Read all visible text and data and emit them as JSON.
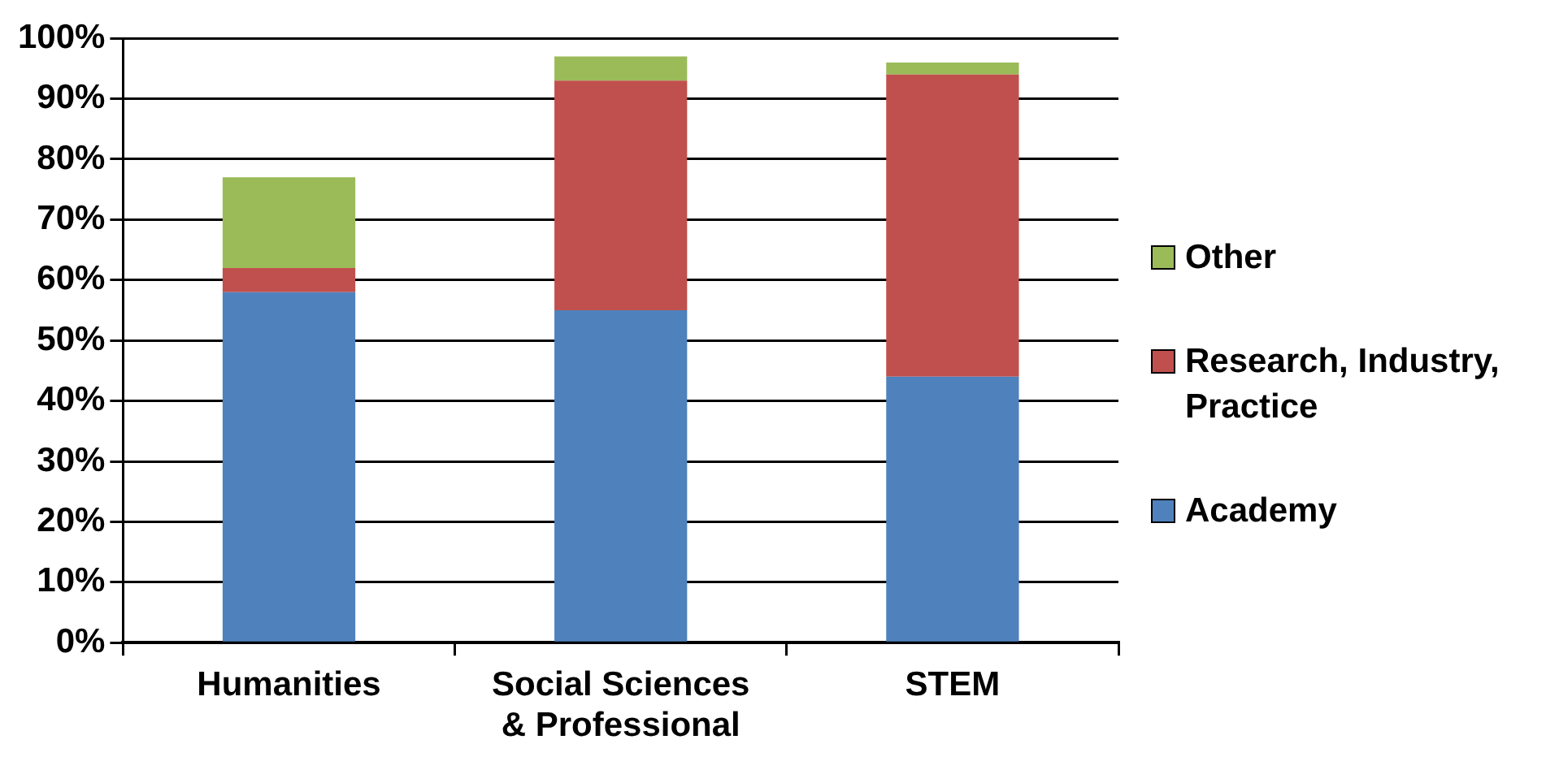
{
  "chart_data": {
    "type": "bar",
    "stacked": true,
    "categories": [
      "Humanities",
      "Social Sciences & Professional",
      "STEM"
    ],
    "series": [
      {
        "name": "Academy",
        "color": "#4f81bd",
        "values": [
          58,
          55,
          44
        ]
      },
      {
        "name": "Research, Industry, Practice",
        "color": "#c0504d",
        "values": [
          4,
          38,
          50
        ]
      },
      {
        "name": "Other",
        "color": "#9bbb59",
        "values": [
          15,
          4,
          2
        ]
      }
    ],
    "ylim": [
      0,
      100
    ],
    "yticks": [
      {
        "value": 0,
        "label": "0%"
      },
      {
        "value": 10,
        "label": "10%"
      },
      {
        "value": 20,
        "label": "20%"
      },
      {
        "value": 30,
        "label": "30%"
      },
      {
        "value": 40,
        "label": "40%"
      },
      {
        "value": 50,
        "label": "50%"
      },
      {
        "value": 60,
        "label": "60%"
      },
      {
        "value": 70,
        "label": "70%"
      },
      {
        "value": 80,
        "label": "80%"
      },
      {
        "value": 90,
        "label": "90%"
      },
      {
        "value": 100,
        "label": "100%"
      }
    ],
    "grid": "y",
    "legend": "right"
  }
}
